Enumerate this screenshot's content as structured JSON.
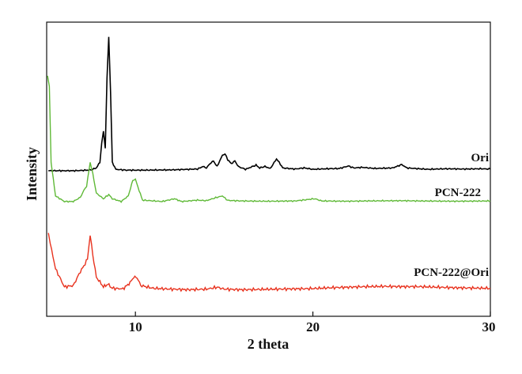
{
  "chart_data": {
    "type": "line",
    "title": "",
    "xlabel": "2 theta",
    "ylabel": "Intensity",
    "xlim": [
      5,
      30
    ],
    "x_ticks": [
      "10",
      "20",
      "30"
    ],
    "y_ticks": [],
    "grid": false,
    "legend": "none; series names printed at right end of each trace",
    "y_unit": "arbitrary (offset stacked traces)",
    "series": [
      {
        "name": "Ori",
        "color": "#000000",
        "points": [
          [
            5.1,
            0.52
          ],
          [
            6.5,
            0.52
          ],
          [
            7.0,
            0.521
          ],
          [
            7.5,
            0.523
          ],
          [
            7.8,
            0.53
          ],
          [
            8.0,
            0.55
          ],
          [
            8.1,
            0.62
          ],
          [
            8.2,
            0.66
          ],
          [
            8.3,
            0.6
          ],
          [
            8.4,
            0.85
          ],
          [
            8.5,
            1.0
          ],
          [
            8.6,
            0.8
          ],
          [
            8.7,
            0.55
          ],
          [
            8.9,
            0.525
          ],
          [
            9.5,
            0.522
          ],
          [
            10.5,
            0.522
          ],
          [
            12.0,
            0.523
          ],
          [
            13.5,
            0.526
          ],
          [
            13.8,
            0.535
          ],
          [
            14.0,
            0.53
          ],
          [
            14.2,
            0.545
          ],
          [
            14.4,
            0.555
          ],
          [
            14.6,
            0.535
          ],
          [
            14.9,
            0.575
          ],
          [
            15.05,
            0.58
          ],
          [
            15.2,
            0.56
          ],
          [
            15.4,
            0.545
          ],
          [
            15.6,
            0.555
          ],
          [
            15.8,
            0.535
          ],
          [
            16.2,
            0.525
          ],
          [
            16.8,
            0.54
          ],
          [
            17.0,
            0.53
          ],
          [
            17.3,
            0.535
          ],
          [
            17.6,
            0.528
          ],
          [
            17.95,
            0.562
          ],
          [
            18.1,
            0.55
          ],
          [
            18.3,
            0.53
          ],
          [
            19.0,
            0.526
          ],
          [
            19.5,
            0.53
          ],
          [
            20.0,
            0.525
          ],
          [
            20.8,
            0.527
          ],
          [
            21.5,
            0.528
          ],
          [
            22.0,
            0.537
          ],
          [
            22.3,
            0.53
          ],
          [
            22.8,
            0.532
          ],
          [
            23.5,
            0.528
          ],
          [
            24.5,
            0.53
          ],
          [
            25.0,
            0.542
          ],
          [
            25.3,
            0.53
          ],
          [
            26.5,
            0.525
          ],
          [
            27.5,
            0.527
          ],
          [
            28.5,
            0.526
          ],
          [
            29.5,
            0.527
          ],
          [
            30.0,
            0.526
          ]
        ]
      },
      {
        "name": "PCN-222",
        "color": "#5fb937",
        "points": [
          [
            5.05,
            0.86
          ],
          [
            5.15,
            0.82
          ],
          [
            5.25,
            0.55
          ],
          [
            5.5,
            0.43
          ],
          [
            6.0,
            0.41
          ],
          [
            6.5,
            0.41
          ],
          [
            6.9,
            0.425
          ],
          [
            7.1,
            0.45
          ],
          [
            7.25,
            0.465
          ],
          [
            7.45,
            0.55
          ],
          [
            7.6,
            0.51
          ],
          [
            7.8,
            0.44
          ],
          [
            8.2,
            0.42
          ],
          [
            8.5,
            0.435
          ],
          [
            8.7,
            0.42
          ],
          [
            9.2,
            0.41
          ],
          [
            9.6,
            0.43
          ],
          [
            9.85,
            0.485
          ],
          [
            10.0,
            0.49
          ],
          [
            10.15,
            0.46
          ],
          [
            10.4,
            0.415
          ],
          [
            11.5,
            0.41
          ],
          [
            12.2,
            0.42
          ],
          [
            12.6,
            0.41
          ],
          [
            13.5,
            0.415
          ],
          [
            14.0,
            0.413
          ],
          [
            14.6,
            0.425
          ],
          [
            14.9,
            0.43
          ],
          [
            15.2,
            0.414
          ],
          [
            16.0,
            0.412
          ],
          [
            17.5,
            0.411
          ],
          [
            19.0,
            0.412
          ],
          [
            20.1,
            0.42
          ],
          [
            20.5,
            0.412
          ],
          [
            22.0,
            0.411
          ],
          [
            23.0,
            0.412
          ],
          [
            25.0,
            0.413
          ],
          [
            26.0,
            0.412
          ],
          [
            28.0,
            0.411
          ],
          [
            30.0,
            0.412
          ]
        ]
      },
      {
        "name": "PCN-222@Ori",
        "color": "#e8321e",
        "points": [
          [
            5.1,
            0.3
          ],
          [
            5.2,
            0.26
          ],
          [
            5.5,
            0.17
          ],
          [
            6.0,
            0.105
          ],
          [
            6.5,
            0.11
          ],
          [
            6.9,
            0.16
          ],
          [
            7.1,
            0.18
          ],
          [
            7.3,
            0.205
          ],
          [
            7.45,
            0.29
          ],
          [
            7.6,
            0.22
          ],
          [
            7.8,
            0.14
          ],
          [
            8.2,
            0.105
          ],
          [
            8.45,
            0.115
          ],
          [
            8.7,
            0.1
          ],
          [
            9.3,
            0.098
          ],
          [
            9.7,
            0.12
          ],
          [
            9.9,
            0.14
          ],
          [
            10.1,
            0.138
          ],
          [
            10.3,
            0.11
          ],
          [
            11.0,
            0.1
          ],
          [
            12.0,
            0.097
          ],
          [
            13.0,
            0.095
          ],
          [
            14.0,
            0.097
          ],
          [
            14.6,
            0.104
          ],
          [
            15.0,
            0.097
          ],
          [
            16.0,
            0.095
          ],
          [
            17.0,
            0.096
          ],
          [
            18.0,
            0.097
          ],
          [
            19.0,
            0.098
          ],
          [
            20.0,
            0.099
          ],
          [
            21.0,
            0.102
          ],
          [
            22.0,
            0.104
          ],
          [
            23.0,
            0.106
          ],
          [
            24.0,
            0.107
          ],
          [
            25.0,
            0.106
          ],
          [
            26.0,
            0.106
          ],
          [
            27.0,
            0.104
          ],
          [
            28.0,
            0.102
          ],
          [
            29.0,
            0.101
          ],
          [
            30.0,
            0.1
          ]
        ]
      }
    ]
  }
}
